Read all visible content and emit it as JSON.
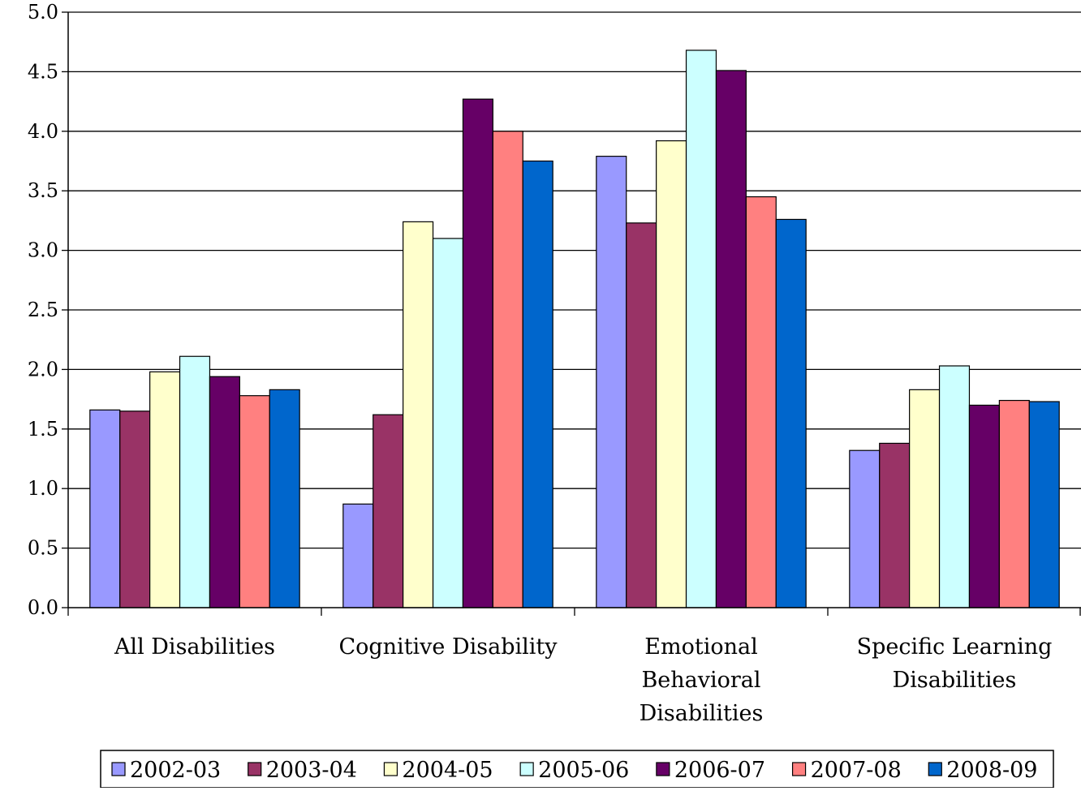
{
  "chart_data": {
    "type": "bar",
    "title": "",
    "xlabel": "",
    "ylabel": "",
    "ylim": [
      0,
      5.0
    ],
    "yticks": [
      "0.0",
      "0.5",
      "1.0",
      "1.5",
      "2.0",
      "2.5",
      "3.0",
      "3.5",
      "4.0",
      "4.5",
      "5.0"
    ],
    "grid": true,
    "legend_position": "bottom",
    "categories": [
      [
        "All Disabilities"
      ],
      [
        "Cognitive Disability"
      ],
      [
        "Emotional",
        "Behavioral",
        "Disabilities"
      ],
      [
        "Specific Learning",
        "Disabilities"
      ]
    ],
    "series": [
      {
        "name": "2002-03",
        "color": "#9999FF",
        "values": [
          1.66,
          0.87,
          3.79,
          1.32
        ]
      },
      {
        "name": "2003-04",
        "color": "#993366",
        "values": [
          1.65,
          1.62,
          3.23,
          1.38
        ]
      },
      {
        "name": "2004-05",
        "color": "#FFFFCC",
        "values": [
          1.98,
          3.24,
          3.92,
          1.83
        ]
      },
      {
        "name": "2005-06",
        "color": "#CCFFFF",
        "values": [
          2.11,
          3.1,
          4.68,
          2.03
        ]
      },
      {
        "name": "2006-07",
        "color": "#660066",
        "values": [
          1.94,
          4.27,
          4.51,
          1.7
        ]
      },
      {
        "name": "2007-08",
        "color": "#FF8080",
        "values": [
          1.78,
          4.0,
          3.45,
          1.74
        ]
      },
      {
        "name": "2008-09",
        "color": "#0066CC",
        "values": [
          1.83,
          3.75,
          3.26,
          1.73
        ]
      }
    ]
  }
}
